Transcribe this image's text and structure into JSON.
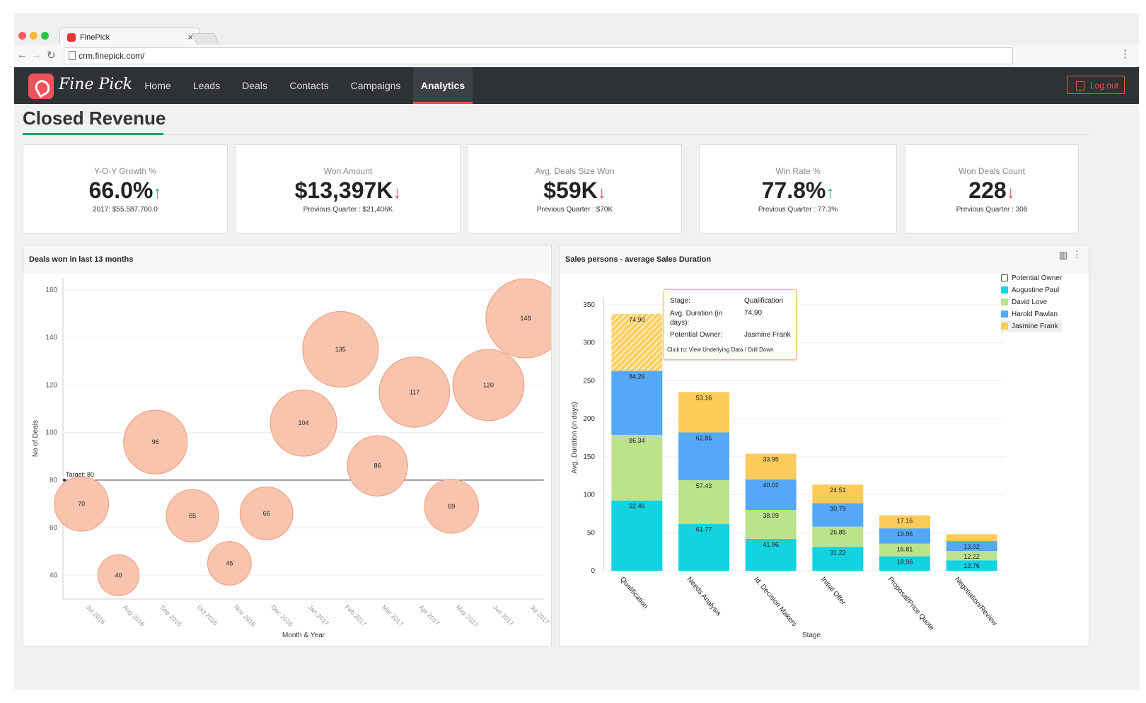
{
  "browser": {
    "tab_title": "FinePick",
    "url": "crm.finepick.com/"
  },
  "app": {
    "logo_text": "Fine Pick",
    "nav": [
      "Home",
      "Leads",
      "Deals",
      "Contacts",
      "Campaigns",
      "Analytics"
    ],
    "active_nav": "Analytics",
    "logout_label": "Log out"
  },
  "page": {
    "title": "Closed Revenue"
  },
  "kpis": [
    {
      "label": "Y-O-Y Growth %",
      "value": "66.0%",
      "trend": "up",
      "sub": "2017: $55,587,700.0"
    },
    {
      "label": "Won Amount",
      "value": "$13,397K",
      "trend": "down",
      "sub": "Previous Quarter : $21,406K"
    },
    {
      "label": "Avg. Deals Size Won",
      "value": "$59K",
      "trend": "down",
      "sub": "Previous Quarter : $70K"
    },
    {
      "label": "Win Rate %",
      "value": "77.8%",
      "trend": "up",
      "sub": "Previous Quarter : 77.3%"
    },
    {
      "label": "Won Deals Count",
      "value": "228",
      "trend": "down",
      "sub": "Previous Quarter : 306"
    }
  ],
  "colors": {
    "accent": "#e8543f",
    "green_underline": "#23a26d",
    "bubble_fill": "#f8c4ad",
    "bubble_stroke": "#ef9a7d",
    "augustine": "#12d3e2",
    "david": "#bde28c",
    "harold": "#55a8f7",
    "jasmine": "#fccb5a"
  },
  "chart_data": [
    {
      "type": "scatter",
      "title": "Deals won in last 13 months",
      "xlabel": "Month & Year",
      "ylabel": "No of Deals",
      "categories": [
        "Jul 2016",
        "Aug 2016",
        "Sep 2016",
        "Oct 2016",
        "Nov 2016",
        "Dec 2016",
        "Jan 2017",
        "Feb 2017",
        "Mar 2017",
        "Apr 2017",
        "May 2017",
        "Jun 2017",
        "Jul 2017"
      ],
      "values": [
        70,
        40,
        96,
        65,
        45,
        66,
        104,
        135,
        86,
        117,
        69,
        120,
        148
      ],
      "ylim": [
        30,
        165
      ],
      "yticks": [
        40,
        60,
        80,
        100,
        120,
        140,
        160
      ],
      "target": {
        "label": "Target: 80",
        "value": 80
      }
    },
    {
      "type": "bar",
      "stacked": true,
      "title": "Sales persons - average Sales Duration",
      "xlabel": "Stage",
      "ylabel": "Avg. Duration (in days)",
      "categories": [
        "Qualification",
        "Needs Analysis",
        "Id. Decision Makers",
        "Initial Offer",
        "Proposal/Price Quote",
        "Negotiation/Review"
      ],
      "ylim": [
        0,
        350
      ],
      "yticks": [
        0,
        50,
        100,
        150,
        200,
        250,
        300,
        350
      ],
      "legend_title": "Potential Owner",
      "series": [
        {
          "name": "Augustine Paul",
          "color": "#12d3e2",
          "values": [
            92.46,
            61.77,
            41.96,
            31.22,
            18.96,
            13.76
          ]
        },
        {
          "name": "David Love",
          "color": "#bde28c",
          "values": [
            86.34,
            57.43,
            38.09,
            26.85,
            16.81,
            12.22
          ]
        },
        {
          "name": "Harold Pawlan",
          "color": "#55a8f7",
          "values": [
            84.26,
            62.85,
            40.02,
            30.79,
            19.96,
            13.02
          ]
        },
        {
          "name": "Jasmine Frank",
          "color": "#fccb5a",
          "values": [
            74.9,
            53.16,
            33.95,
            24.51,
            17.16,
            9.0
          ]
        }
      ],
      "value_labels": [
        [
          "92.46",
          "86.34",
          "84.26",
          "74.90"
        ],
        [
          "61.77",
          "57.43",
          "62.85",
          "53.16"
        ],
        [
          "41.96",
          "38.09",
          "40.02",
          "33.95"
        ],
        [
          "31.22",
          "26.85",
          "30.79",
          "24.51"
        ],
        [
          "18.96",
          "16.81",
          "19.96",
          "17.16"
        ],
        [
          "13.76",
          "12.22",
          "13.02",
          ""
        ]
      ]
    }
  ],
  "tooltip": {
    "stage_label": "Stage:",
    "stage_value": "Qualification",
    "duration_label": "Avg. Duration (in days):",
    "duration_value": "74.90",
    "owner_label": "Potential Owner:",
    "owner_value": "Jasmine Frank",
    "hint": "Click to: View Underlying Data / Drill Down"
  }
}
